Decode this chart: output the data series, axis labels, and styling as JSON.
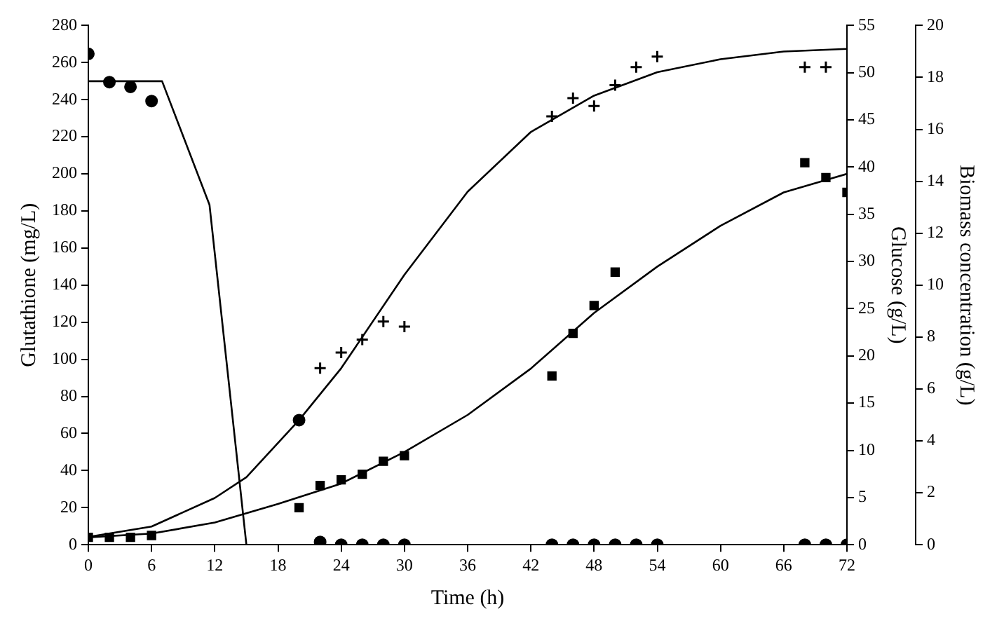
{
  "chart_data": {
    "type": "scatter",
    "xlabel": "Time (h)",
    "ylabel": "Glutathione (mg/L)",
    "y2label": "Glucose (g/L)",
    "y3label": "Biomass concentration (g/L)",
    "xlim": [
      0,
      72
    ],
    "xticks": [
      0,
      6,
      12,
      18,
      24,
      30,
      36,
      42,
      48,
      54,
      60,
      66,
      72
    ],
    "ylim": [
      0,
      280
    ],
    "yticks": [
      0,
      20,
      40,
      60,
      80,
      100,
      120,
      140,
      160,
      180,
      200,
      220,
      240,
      260,
      280
    ],
    "y2lim": [
      0,
      55
    ],
    "y2ticks": [
      0,
      5,
      10,
      15,
      20,
      25,
      30,
      35,
      40,
      45,
      50,
      55
    ],
    "y3lim": [
      0,
      20
    ],
    "y3ticks": [
      0,
      2,
      4,
      6,
      8,
      10,
      12,
      14,
      16,
      18,
      20
    ],
    "grid": false,
    "legend": false,
    "series": [
      {
        "marker": "square",
        "color": "#000000",
        "x": [
          0,
          2,
          4,
          6,
          20,
          22,
          24,
          26,
          28,
          30,
          44,
          46,
          48,
          50,
          68,
          70,
          72
        ],
        "values": [
          4,
          4,
          4,
          5,
          20,
          32,
          35,
          38,
          45,
          48,
          91,
          114,
          129,
          147,
          206,
          198,
          190
        ]
      },
      {
        "marker": "circle",
        "color": "#000000",
        "axis": "y2",
        "x": [
          0,
          2,
          4,
          6,
          22,
          24,
          26,
          28,
          30,
          44,
          46,
          48,
          50,
          52,
          54,
          68,
          70,
          72
        ],
        "values": [
          52,
          49,
          48.5,
          47,
          0.3,
          0,
          0,
          0,
          0,
          0,
          0,
          0,
          0,
          0,
          0,
          0,
          0,
          0
        ]
      },
      {
        "marker": "cross",
        "color": "#000000",
        "axis": "y3",
        "x": [
          22,
          24,
          26,
          28,
          30,
          44,
          46,
          48,
          50,
          52,
          54,
          68,
          70
        ],
        "values": [
          6.8,
          7.4,
          7.9,
          8.6,
          8.4,
          16.5,
          17.2,
          16.9,
          17.7,
          18.4,
          18.8,
          18.4,
          18.4
        ]
      },
      {
        "marker": "circle",
        "color": "#000000",
        "axis": "y3",
        "x": [
          20
        ],
        "values": [
          4.8
        ]
      },
      {
        "type": "line",
        "marker": "none",
        "color": "#000000",
        "x": [
          0,
          6,
          12,
          18,
          24,
          30,
          36,
          42,
          48,
          54,
          60,
          66,
          72
        ],
        "values": [
          4,
          6,
          12,
          22,
          33,
          50,
          70,
          95,
          125,
          150,
          172,
          190,
          200
        ]
      },
      {
        "type": "line",
        "marker": "none",
        "color": "#000000",
        "axis": "y3",
        "x": [
          0,
          6,
          12,
          15,
          20,
          24,
          30,
          36,
          42,
          48,
          54,
          60,
          66,
          72
        ],
        "values": [
          0.3,
          0.7,
          1.8,
          2.6,
          4.8,
          6.8,
          10.4,
          13.6,
          15.9,
          17.3,
          18.2,
          18.7,
          19,
          19.1
        ]
      },
      {
        "type": "line",
        "marker": "none",
        "color": "#000000",
        "axis": "y2",
        "x": [
          0,
          7,
          11.5,
          15
        ],
        "values": [
          49.1,
          49.1,
          36,
          0
        ]
      }
    ]
  }
}
